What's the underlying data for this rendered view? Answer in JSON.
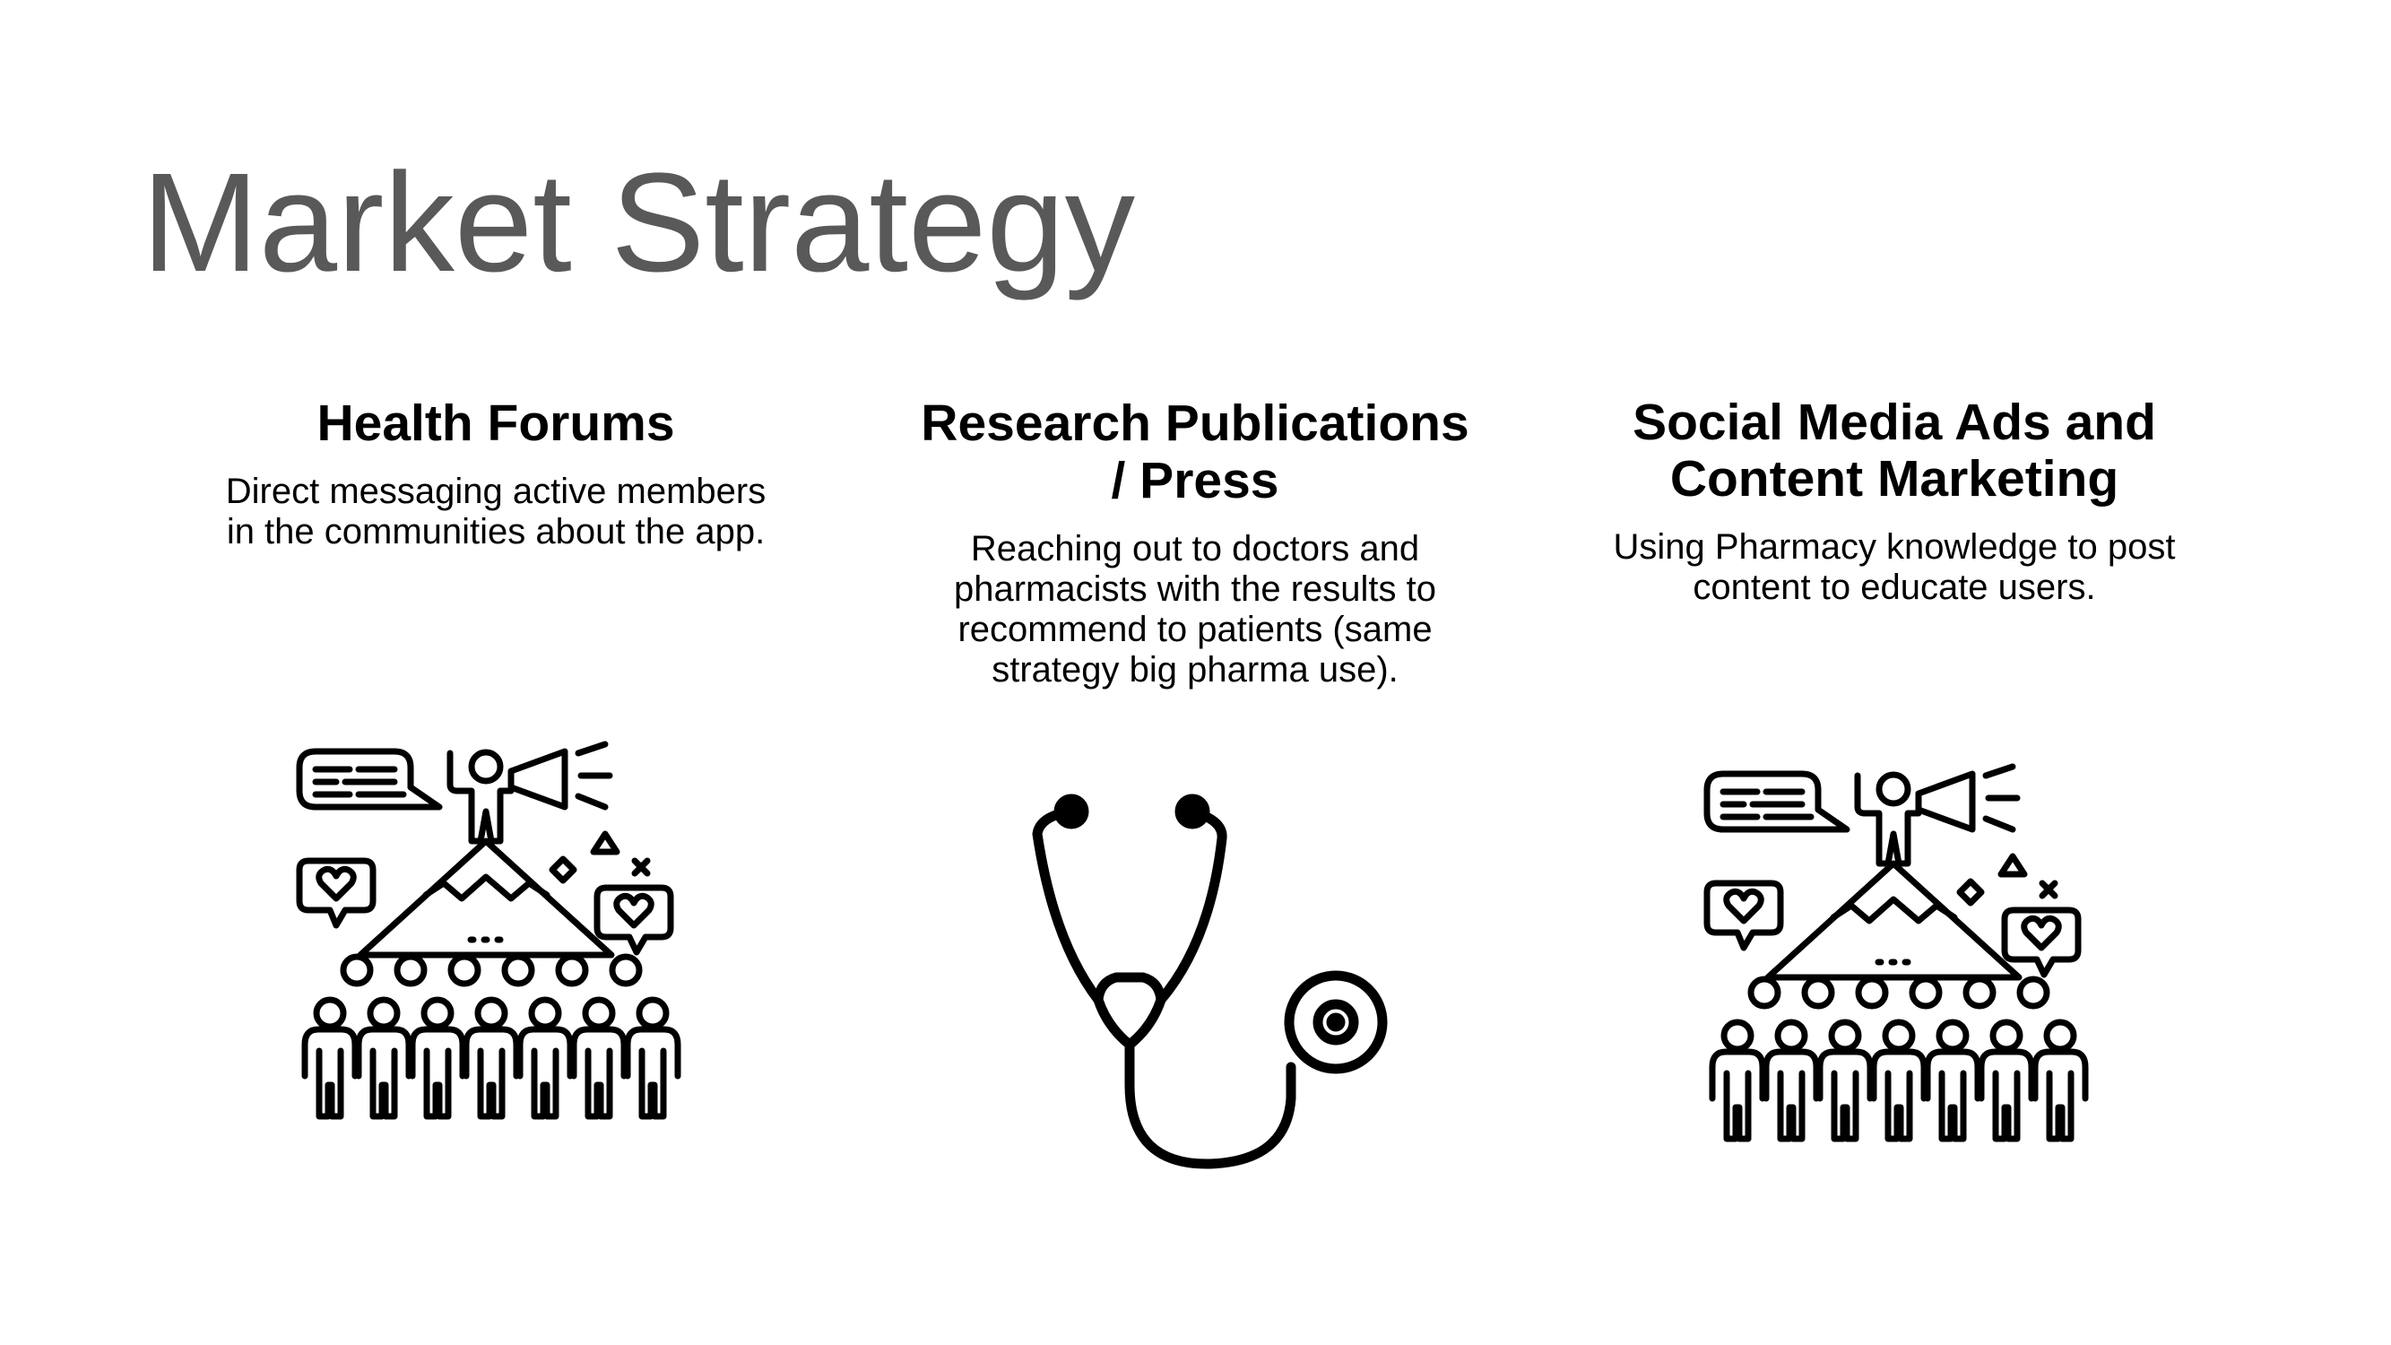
{
  "slide": {
    "title": "Market Strategy"
  },
  "columns": [
    {
      "heading": "Health Forums",
      "body": "Direct messaging active members in the communities about the app.",
      "icon": "megaphone-crowd-icon"
    },
    {
      "heading": "Research Publications / Press",
      "body": "Reaching out to doctors and pharmacists with the results to recommend to patients (same strategy big pharma use).",
      "icon": "stethoscope-icon"
    },
    {
      "heading": "Social Media Ads and Content Marketing",
      "body": "Using Pharmacy knowledge to post content to educate users.",
      "icon": "megaphone-crowd-icon"
    }
  ],
  "colors": {
    "title": "#595959",
    "text": "#000000",
    "background": "#ffffff"
  }
}
